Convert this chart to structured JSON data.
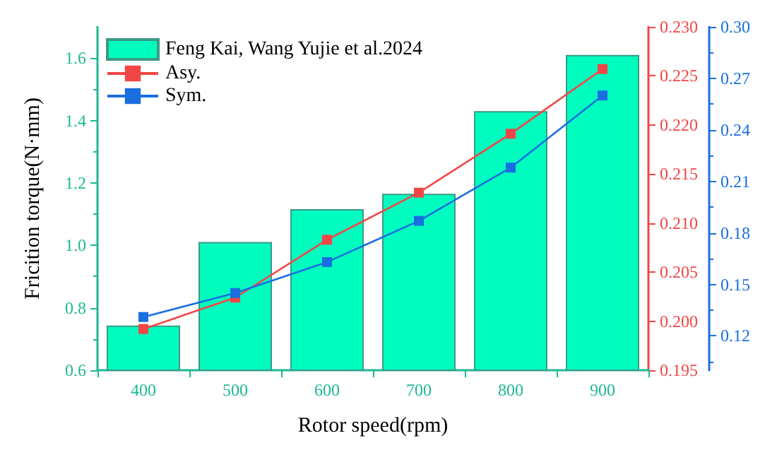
{
  "chart_data": {
    "type": "bar",
    "xlabel": "Rotor speed(rpm)",
    "ylabel": "Fricition torque(N·mm)",
    "categories": [
      "400",
      "500",
      "600",
      "700",
      "800",
      "900"
    ],
    "series": [
      {
        "name": "Feng Kai, Wang Yujie et al.2024",
        "color": "#00fdc0",
        "values": [
          0.743,
          1.011,
          1.116,
          1.165,
          1.43,
          1.61
        ]
      },
      {
        "name": "Asy.",
        "type": "line",
        "axis": "y2",
        "color": "#f24646",
        "values": [
          0.1992,
          0.2024,
          0.2083,
          0.2131,
          0.2191,
          0.2257
        ]
      },
      {
        "name": "Sym.",
        "type": "line",
        "axis": "y3",
        "color": "#1a6fe0",
        "values": [
          0.131,
          0.145,
          0.163,
          0.187,
          0.218,
          0.26
        ]
      }
    ],
    "ylim": [
      0.6,
      1.7
    ],
    "yticks": [
      0.6,
      0.8,
      {
        "value": 1.0,
        "label": "1.0"
      },
      1.2,
      1.4,
      1.6
    ],
    "y2lim": [
      0.195,
      0.23
    ],
    "y2ticks": [
      0.195,
      {
        "value": 0.2,
        "label": "0.200"
      },
      0.205,
      {
        "value": 0.21,
        "label": "0.210"
      },
      0.215,
      {
        "value": 0.22,
        "label": "0.220"
      },
      0.225,
      {
        "value": 0.23,
        "label": "0.230"
      }
    ],
    "y3lim": [
      0.1,
      0.3
    ],
    "y3ticks": [
      0.12,
      0.15,
      0.18,
      0.21,
      0.24,
      0.27,
      {
        "value": 0.3,
        "label": "0.30"
      }
    ],
    "grid": false,
    "legend": "top left",
    "marker": "square",
    "line_style": "solid"
  }
}
